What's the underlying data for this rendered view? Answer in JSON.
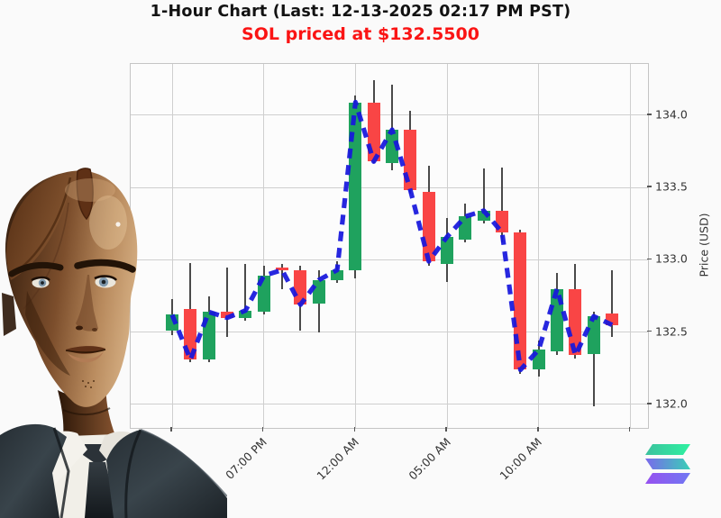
{
  "header": {
    "title": "1-Hour Chart (Last: 12-13-2025 02:17 PM PST)",
    "subtitle": "SOL priced at $132.5500",
    "title_color": "#121212",
    "subtitle_color": "#fa1414"
  },
  "chart_data": {
    "type": "candlestick",
    "title": "1-Hour Chart (Last: 12-13-2025 02:17 PM PST)",
    "ylabel": "Price (USD)",
    "y_axis_side": "right",
    "grid": true,
    "y_ticks": [
      134.0,
      133.5,
      133.0,
      132.5,
      132.0
    ],
    "ylim": [
      131.84,
      134.36
    ],
    "x_gridline_hours": [
      0,
      5,
      10,
      15,
      20,
      25
    ],
    "x_ticks": [
      {
        "hour": 5,
        "label": "07:00 PM"
      },
      {
        "hour": 10,
        "label": "12:00 AM"
      },
      {
        "hour": 15,
        "label": "05:00 AM"
      },
      {
        "hour": 20,
        "label": "10:00 AM"
      }
    ],
    "up_color": "#1fa25e",
    "down_color": "#f94545",
    "wick_color": "#4a4a4a",
    "overlay_line": {
      "style": "dashed",
      "color": "#1717dd",
      "through": "close"
    },
    "candles": [
      {
        "t": 0,
        "o": 132.51,
        "h": 132.73,
        "l": 132.48,
        "c": 132.62
      },
      {
        "t": 1,
        "o": 132.66,
        "h": 132.98,
        "l": 132.29,
        "c": 132.31
      },
      {
        "t": 2,
        "o": 132.31,
        "h": 132.75,
        "l": 132.29,
        "c": 132.64
      },
      {
        "t": 3,
        "o": 132.64,
        "h": 132.95,
        "l": 132.47,
        "c": 132.6
      },
      {
        "t": 4,
        "o": 132.6,
        "h": 132.97,
        "l": 132.58,
        "c": 132.65
      },
      {
        "t": 5,
        "o": 132.64,
        "h": 132.96,
        "l": 132.62,
        "c": 132.89
      },
      {
        "t": 6,
        "o": 132.95,
        "h": 132.97,
        "l": 132.8,
        "c": 132.93
      },
      {
        "t": 7,
        "o": 132.93,
        "h": 132.96,
        "l": 132.51,
        "c": 132.69
      },
      {
        "t": 8,
        "o": 132.7,
        "h": 132.93,
        "l": 132.5,
        "c": 132.86
      },
      {
        "t": 9,
        "o": 132.86,
        "h": 132.99,
        "l": 132.84,
        "c": 132.93
      },
      {
        "t": 10,
        "o": 132.93,
        "h": 134.14,
        "l": 132.87,
        "c": 134.09
      },
      {
        "t": 11,
        "o": 134.09,
        "h": 134.24,
        "l": 133.67,
        "c": 133.68
      },
      {
        "t": 12,
        "o": 133.67,
        "h": 134.21,
        "l": 133.62,
        "c": 133.9
      },
      {
        "t": 13,
        "o": 133.9,
        "h": 134.03,
        "l": 133.46,
        "c": 133.48
      },
      {
        "t": 14,
        "o": 133.47,
        "h": 133.65,
        "l": 132.96,
        "c": 132.99
      },
      {
        "t": 15,
        "o": 132.97,
        "h": 133.29,
        "l": 132.85,
        "c": 133.16
      },
      {
        "t": 16,
        "o": 133.14,
        "h": 133.39,
        "l": 133.12,
        "c": 133.3
      },
      {
        "t": 17,
        "o": 133.27,
        "h": 133.63,
        "l": 133.25,
        "c": 133.34
      },
      {
        "t": 18,
        "o": 133.34,
        "h": 133.64,
        "l": 133.12,
        "c": 133.19
      },
      {
        "t": 19,
        "o": 133.19,
        "h": 133.21,
        "l": 132.21,
        "c": 132.24
      },
      {
        "t": 20,
        "o": 132.24,
        "h": 132.44,
        "l": 132.19,
        "c": 132.38
      },
      {
        "t": 21,
        "o": 132.37,
        "h": 132.91,
        "l": 132.34,
        "c": 132.8
      },
      {
        "t": 22,
        "o": 132.8,
        "h": 132.97,
        "l": 132.32,
        "c": 132.34
      },
      {
        "t": 23,
        "o": 132.35,
        "h": 132.64,
        "l": 131.99,
        "c": 132.61
      },
      {
        "t": 24,
        "o": 132.63,
        "h": 132.93,
        "l": 132.47,
        "c": 132.55
      }
    ]
  },
  "branding": {
    "solana_logo": {
      "bar_top_gradient": [
        "#3cc19e",
        "#2ef1a0"
      ],
      "bar_mid_gradient": [
        "#7a68ec",
        "#39d0b6"
      ],
      "bar_bottom_gradient": [
        "#9750f0",
        "#7078f2"
      ]
    }
  }
}
